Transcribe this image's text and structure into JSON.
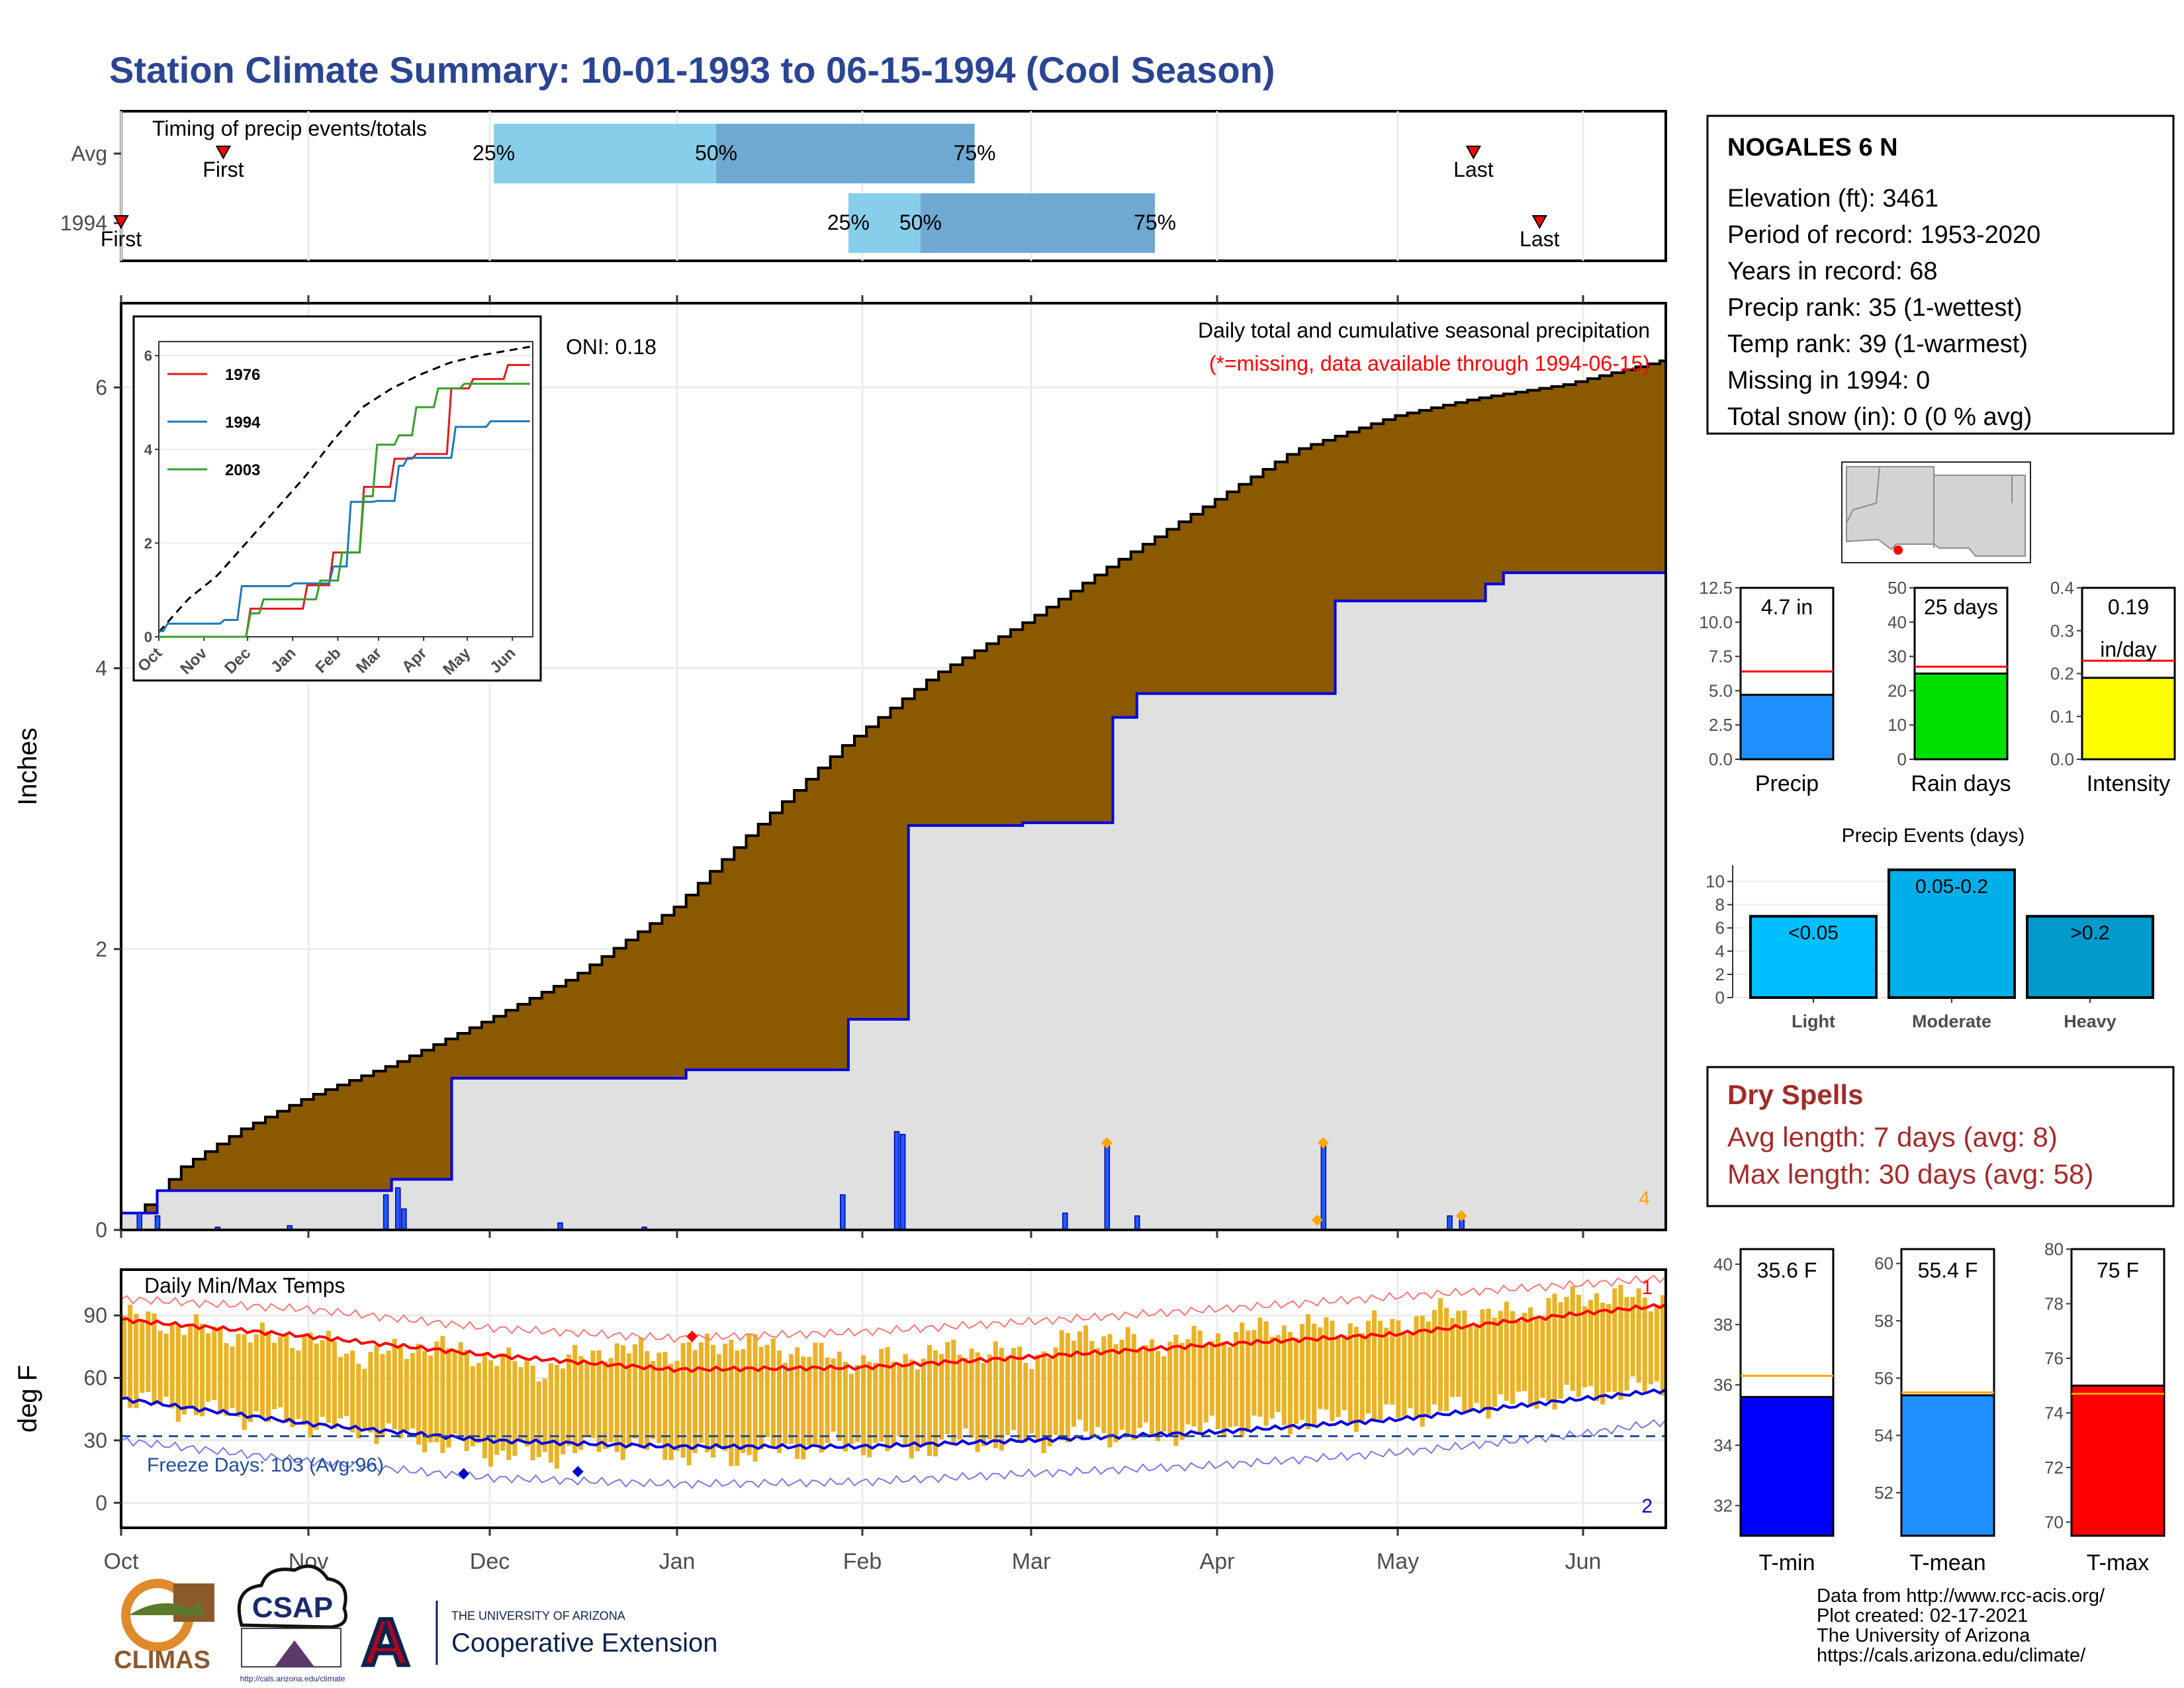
{
  "header": {
    "title": "Station Climate Summary: 10-01-1993 to 06-15-1994 (Cool Season)"
  },
  "timing": {
    "title": "Timing of precip events/totals",
    "rows": [
      {
        "label": "Avg",
        "first_label": "First",
        "last_label": "Last",
        "first_day": 17,
        "last_day": 225,
        "p25_day": 62,
        "p50_day": 99,
        "p75_day": 142,
        "p25_label": "25%",
        "p50_label": "50%",
        "p75_label": "75%"
      },
      {
        "label": "1994",
        "first_label": "First",
        "last_label": "Last",
        "first_day": 0,
        "last_day": 236,
        "p25_day": 121,
        "p50_day": 133,
        "p75_day": 172,
        "p25_label": "25%",
        "p50_label": "50%",
        "p75_label": "75%"
      }
    ]
  },
  "precip_panel": {
    "ylabel": "Inches",
    "oni": "ONI: 0.18",
    "subtitle": "Daily total and cumulative seasonal precipitation",
    "missing_note": "(*=missing, data available through 1994-06-15)",
    "corner_value": "4",
    "ylim": [
      0,
      6.6
    ],
    "yticks": [
      "0",
      "2",
      "4",
      "6"
    ]
  },
  "inset": {
    "series_labels": [
      "1976",
      "1994",
      "2003"
    ],
    "xticks": [
      "Oct",
      "Nov",
      "Dec",
      "Jan",
      "Feb",
      "Mar",
      "Apr",
      "May",
      "Jun"
    ],
    "yticks": [
      "0",
      "2",
      "4",
      "6"
    ]
  },
  "temp_panel": {
    "ylabel": "deg F",
    "title": "Daily Min/Max Temps",
    "freeze_text": "Freeze Days: 103 (Avg:96)",
    "top_count": "1",
    "bottom_count": "2",
    "yticks": [
      "0",
      "30",
      "60",
      "90"
    ],
    "ylim": [
      -12,
      112
    ]
  },
  "months": [
    "Oct",
    "Nov",
    "Dec",
    "Jan",
    "Feb",
    "Mar",
    "Apr",
    "May",
    "Jun"
  ],
  "station": {
    "name": "NOGALES 6 N",
    "elevation": "Elevation (ft): 3461",
    "period": "Period of record: 1953-2020",
    "years": "Years in record: 68",
    "precip_rank": "Precip rank: 35 (1-wettest)",
    "temp_rank": "Temp rank: 39 (1-warmest)",
    "missing": "Missing in 1994: 0",
    "snow": "Total snow (in): 0 (0 % avg)"
  },
  "mini_bars": [
    {
      "label": "Precip",
      "value_text": "4.7 in",
      "value": 4.7,
      "avg": 6.4,
      "ymax": 12.5,
      "yticks": [
        "0.0",
        "2.5",
        "5.0",
        "7.5",
        "10.0",
        "12.5"
      ],
      "color": "#1e90ff"
    },
    {
      "label": "Rain days",
      "value_text": "25 days",
      "value": 25,
      "avg": 27,
      "ymax": 50,
      "yticks": [
        "0",
        "10",
        "20",
        "30",
        "40",
        "50"
      ],
      "color": "#00e000"
    },
    {
      "label": "Intensity",
      "value_text": "0.19",
      "value_text2": "in/day",
      "value": 0.19,
      "avg": 0.23,
      "ymax": 0.4,
      "yticks": [
        "0.0",
        "0.1",
        "0.2",
        "0.3",
        "0.4"
      ],
      "color": "#ffff00"
    }
  ],
  "precip_events": {
    "title": "Precip Events (days)",
    "yticks": [
      "0",
      "2",
      "4",
      "6",
      "8",
      "10"
    ],
    "bars": [
      {
        "label": "Light",
        "text": "<0.05",
        "value": 7,
        "color": "#00bfff"
      },
      {
        "label": "Moderate",
        "text": "0.05-0.2",
        "value": 11,
        "color": "#00aeea"
      },
      {
        "label": "Heavy",
        "text": ">0.2",
        "value": 7,
        "color": "#0099cc"
      }
    ]
  },
  "dry_spells": {
    "title": "Dry Spells",
    "avg": "Avg length: 7 days (avg: 8)",
    "max": "Max length: 30 days (avg: 58)"
  },
  "temp_bars": [
    {
      "label": "T-min",
      "value_text": "35.6 F",
      "value": 35.6,
      "avg": 36.3,
      "ymin": 31,
      "ymax": 40.5,
      "yticks": [
        "32",
        "34",
        "36",
        "38",
        "40"
      ],
      "color": "#0000ff"
    },
    {
      "label": "T-mean",
      "value_text": "55.4 F",
      "value": 55.4,
      "avg": 55.5,
      "ymin": 50.5,
      "ymax": 60.5,
      "yticks": [
        "52",
        "54",
        "56",
        "58",
        "60"
      ],
      "color": "#1e90ff"
    },
    {
      "label": "T-max",
      "value_text": "75 F",
      "value": 75,
      "avg": 74.7,
      "ymin": 69.5,
      "ymax": 80,
      "yticks": [
        "70",
        "72",
        "74",
        "76",
        "78",
        "80"
      ],
      "color": "#ff0000"
    }
  ],
  "footer": {
    "lines": [
      "Data from http://www.rcc-acis.org/",
      "Plot created: 02-17-2021",
      "The University of Arizona",
      "https://cals.arizona.edu/climate/"
    ],
    "logo1": "CLIMAS",
    "logo2": "CSAP",
    "logo2_url": "http://cals.arizona.edu/climate",
    "logo3_line1": "THE UNIVERSITY OF ARIZONA",
    "logo3_line2": "Cooperative Extension"
  },
  "chart_data": [
    {
      "type": "area",
      "title": "Daily total and cumulative seasonal precipitation",
      "ylabel": "Inches",
      "x_unit": "day of season from 10-01-1993",
      "ylim": [
        0,
        6.6
      ],
      "series": [
        {
          "name": "average cumulative",
          "x": [
            0,
            10,
            20,
            31,
            45,
            61,
            75,
            92,
            105,
            120,
            135,
            151,
            165,
            180,
            195,
            212,
            225,
            240,
            257
          ],
          "values": [
            0,
            0.45,
            0.72,
            0.95,
            1.18,
            1.5,
            1.8,
            2.3,
            2.85,
            3.45,
            3.95,
            4.35,
            4.75,
            5.15,
            5.55,
            5.8,
            5.92,
            6.02,
            6.2
          ]
        },
        {
          "name": "1994 cumulative",
          "x": [
            0,
            6,
            25,
            45,
            46,
            55,
            91,
            94,
            120,
            121,
            130,
            131,
            150,
            157,
            165,
            169,
            198,
            202,
            227,
            230,
            257
          ],
          "values": [
            0.12,
            0.28,
            0.28,
            0.36,
            0.36,
            1.08,
            1.08,
            1.14,
            1.14,
            1.5,
            1.5,
            2.88,
            2.9,
            2.9,
            3.65,
            3.82,
            3.82,
            4.48,
            4.6,
            4.68,
            4.7
          ]
        },
        {
          "name": "1994 daily",
          "x": [
            3,
            6,
            16,
            28,
            44,
            46,
            47,
            73,
            87,
            120,
            129,
            130,
            157,
            164,
            169,
            200,
            221,
            223
          ],
          "values": [
            0.12,
            0.1,
            0.02,
            0.03,
            0.25,
            0.3,
            0.15,
            0.05,
            0.02,
            0.25,
            0.7,
            0.68,
            0.12,
            0.62,
            0.1,
            0.62,
            0.1,
            0.07
          ]
        }
      ]
    },
    {
      "type": "line",
      "title": "",
      "xticks": [
        "Oct",
        "Nov",
        "Dec",
        "Jan",
        "Feb",
        "Mar",
        "Apr",
        "May",
        "Jun"
      ],
      "ylim": [
        0,
        6.2
      ],
      "series": [
        {
          "name": "average",
          "x": [
            0,
            20,
            40,
            60,
            80,
            100,
            120,
            140,
            160,
            180,
            200,
            220,
            257
          ],
          "values": [
            0.1,
            0.8,
            1.3,
            2.0,
            2.7,
            3.4,
            4.2,
            4.9,
            5.3,
            5.6,
            5.85,
            6.0,
            6.2
          ]
        },
        {
          "name": "1976",
          "x": [
            0,
            20,
            60,
            62,
            100,
            120,
            140,
            160,
            175,
            200,
            215,
            240,
            257
          ],
          "values": [
            0,
            0,
            0,
            0.6,
            1.1,
            1.8,
            3.2,
            3.8,
            3.9,
            5.3,
            5.5,
            5.8,
            5.95
          ]
        },
        {
          "name": "1994",
          "x": [
            0,
            6,
            25,
            45,
            55,
            91,
            120,
            131,
            150,
            165,
            169,
            198,
            202,
            227,
            257
          ],
          "values": [
            0.12,
            0.28,
            0.28,
            0.36,
            1.08,
            1.14,
            1.5,
            2.88,
            2.9,
            3.65,
            3.82,
            3.82,
            4.48,
            4.6,
            4.7
          ]
        },
        {
          "name": "2003",
          "x": [
            0,
            30,
            62,
            70,
            110,
            125,
            140,
            150,
            165,
            175,
            190,
            210,
            257
          ],
          "values": [
            0,
            0,
            0.5,
            0.8,
            1.2,
            1.8,
            3.0,
            4.1,
            4.3,
            4.9,
            5.3,
            5.4,
            5.7
          ]
        }
      ]
    },
    {
      "type": "bar",
      "title": "Daily Min/Max Temps",
      "ylabel": "deg F",
      "x_unit": "day of season from 10-01-1993",
      "ylim": [
        -12,
        112
      ],
      "series": [
        {
          "name": "avg max",
          "x": [
            0,
            31,
            61,
            92,
            123,
            151,
            182,
            212,
            243,
            257
          ],
          "values": [
            88,
            80,
            71,
            64,
            65,
            70,
            76,
            81,
            91,
            95
          ]
        },
        {
          "name": "avg min",
          "x": [
            0,
            31,
            61,
            92,
            123,
            151,
            182,
            212,
            243,
            257
          ],
          "values": [
            50,
            38,
            30,
            27,
            27,
            30,
            34,
            40,
            50,
            54
          ]
        },
        {
          "name": "record high",
          "x": [
            0,
            31,
            61,
            92,
            123,
            151,
            182,
            212,
            243,
            257
          ],
          "values": [
            98,
            93,
            84,
            79,
            82,
            87,
            93,
            99,
            105,
            108
          ]
        },
        {
          "name": "record low",
          "x": [
            0,
            31,
            61,
            92,
            123,
            151,
            182,
            212,
            243,
            257
          ],
          "values": [
            30,
            20,
            12,
            9,
            10,
            14,
            18,
            24,
            33,
            39
          ]
        },
        {
          "name": "daily max",
          "x": [
            0,
            10,
            20,
            31,
            40,
            50,
            61,
            70,
            80,
            92,
            100,
            110,
            123,
            130,
            140,
            151,
            160,
            170,
            182,
            190,
            200,
            212,
            220,
            230,
            243,
            257
          ],
          "values": [
            90,
            85,
            80,
            79,
            70,
            76,
            70,
            64,
            74,
            72,
            78,
            74,
            68,
            70,
            74,
            70,
            82,
            76,
            80,
            84,
            85,
            86,
            92,
            90,
            100,
            98
          ]
        },
        {
          "name": "daily min",
          "x": [
            0,
            10,
            20,
            31,
            40,
            50,
            61,
            70,
            80,
            92,
            100,
            110,
            123,
            130,
            140,
            151,
            160,
            170,
            182,
            190,
            200,
            212,
            220,
            230,
            243,
            257
          ],
          "values": [
            50,
            45,
            42,
            38,
            35,
            30,
            24,
            22,
            28,
            24,
            22,
            26,
            28,
            25,
            30,
            29,
            34,
            32,
            36,
            38,
            40,
            42,
            45,
            48,
            52,
            56
          ]
        },
        {
          "name": "freeze line",
          "x": [
            0,
            257
          ],
          "values": [
            32,
            32
          ]
        }
      ]
    }
  ]
}
